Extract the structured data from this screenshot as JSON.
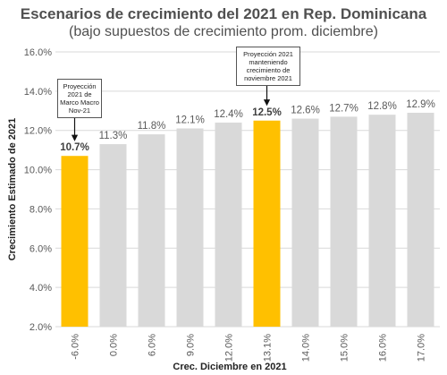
{
  "chart_data": {
    "type": "bar",
    "title": "Escenarios de crecimiento del 2021 en Rep. Dominicana",
    "subtitle": "(bajo supuestos de crecimiento prom. diciembre)",
    "xlabel": "Crec. Diciembre en 2021",
    "ylabel": "Crecimiento Estimado de 2021",
    "ylim": [
      2.0,
      16.0
    ],
    "yticks": [
      "2.0%",
      "4.0%",
      "6.0%",
      "8.0%",
      "10.0%",
      "12.0%",
      "14.0%",
      "16.0%"
    ],
    "ytick_values": [
      2,
      4,
      6,
      8,
      10,
      12,
      14,
      16
    ],
    "categories": [
      "-6.0%",
      "0.0%",
      "6.0%",
      "9.0%",
      "12.0%",
      "13.1%",
      "14.0%",
      "15.0%",
      "16.0%",
      "17.0%"
    ],
    "values": [
      10.7,
      11.3,
      11.8,
      12.1,
      12.4,
      12.5,
      12.6,
      12.7,
      12.8,
      12.9
    ],
    "data_labels": [
      "10.7%",
      "11.3%",
      "11.8%",
      "12.1%",
      "12.4%",
      "12.5%",
      "12.6%",
      "12.7%",
      "12.8%",
      "12.9%"
    ],
    "highlighted": [
      true,
      false,
      false,
      false,
      false,
      true,
      false,
      false,
      false,
      false
    ],
    "colors": {
      "bar": "#d9d9d9",
      "highlight": "#ffc000",
      "grid": "#d9d9d9"
    },
    "grid": true,
    "legend": "none",
    "annotations": [
      {
        "text": [
          "Proyección",
          "2021 de",
          "Marco Macro",
          "Nov-21"
        ],
        "category": "-6.0%"
      },
      {
        "text": [
          "Proyección 2021",
          "manteniendo",
          "crecimiento de",
          "noviembre 2021"
        ],
        "category": "13.1%"
      }
    ]
  }
}
